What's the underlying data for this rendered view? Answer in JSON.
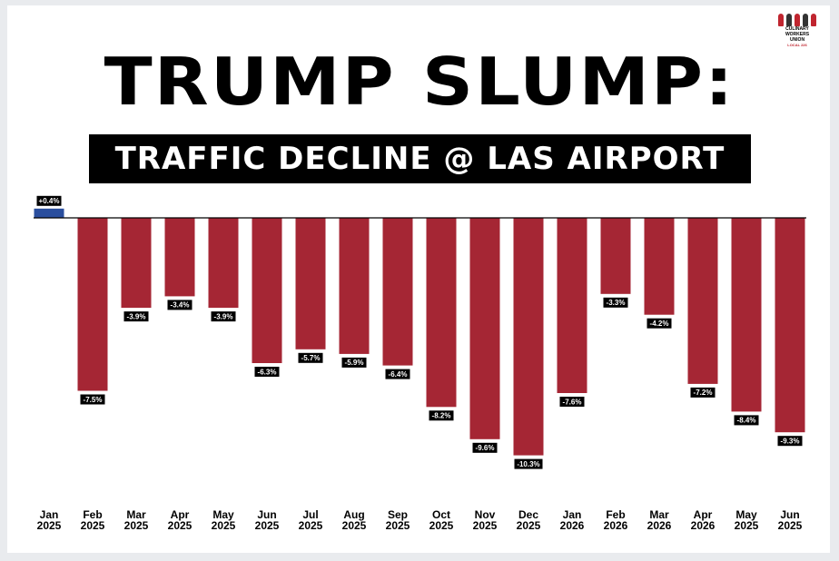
{
  "header": {
    "title": "TRUMP SLUMP:",
    "subtitle": "TRAFFIC DECLINE @ LAS AIRPORT"
  },
  "logo": {
    "line1": "CULINARY",
    "line2": "WORKERS UNION",
    "line3": "LOCAL 226"
  },
  "colors": {
    "positive": "#2a4e9e",
    "negative": "#a52634",
    "label_bg": "#000000",
    "label_text": "#ffffff",
    "baseline": "#000000"
  },
  "chart_data": {
    "type": "bar",
    "title": "TRAFFIC DECLINE @ LAS AIRPORT",
    "categories": [
      [
        "Jan",
        "2025"
      ],
      [
        "Feb",
        "2025"
      ],
      [
        "Mar",
        "2025"
      ],
      [
        "Apr",
        "2025"
      ],
      [
        "May",
        "2025"
      ],
      [
        "Jun",
        "2025"
      ],
      [
        "Jul",
        "2025"
      ],
      [
        "Aug",
        "2025"
      ],
      [
        "Sep",
        "2025"
      ],
      [
        "Oct",
        "2025"
      ],
      [
        "Nov",
        "2025"
      ],
      [
        "Dec",
        "2025"
      ],
      [
        "Jan",
        "2026"
      ],
      [
        "Feb",
        "2026"
      ],
      [
        "Mar",
        "2026"
      ],
      [
        "Apr",
        "2026"
      ],
      [
        "May",
        "2025"
      ],
      [
        "Jun",
        "2025"
      ]
    ],
    "values": [
      0.4,
      -7.5,
      -3.9,
      -3.4,
      -3.9,
      -6.3,
      -5.7,
      -5.9,
      -6.4,
      -8.2,
      -9.6,
      -10.3,
      -7.6,
      -3.3,
      -4.2,
      -7.2,
      -8.4,
      -9.3
    ],
    "data_labels": [
      "+0.4%",
      "-7.5%",
      "-3.9%",
      "-3.4%",
      "-3.9%",
      "-6.3%",
      "-5.7%",
      "-5.9%",
      "-6.4%",
      "-8.2%",
      "-9.6%",
      "-10.3%",
      "-7.6%",
      "-3.3%",
      "-4.2%",
      "-7.2%",
      "-8.4%",
      "-9.3%"
    ],
    "ylim": [
      -10.3,
      0.4
    ],
    "grid": false,
    "legend": "none",
    "xlabel": "",
    "ylabel": ""
  }
}
